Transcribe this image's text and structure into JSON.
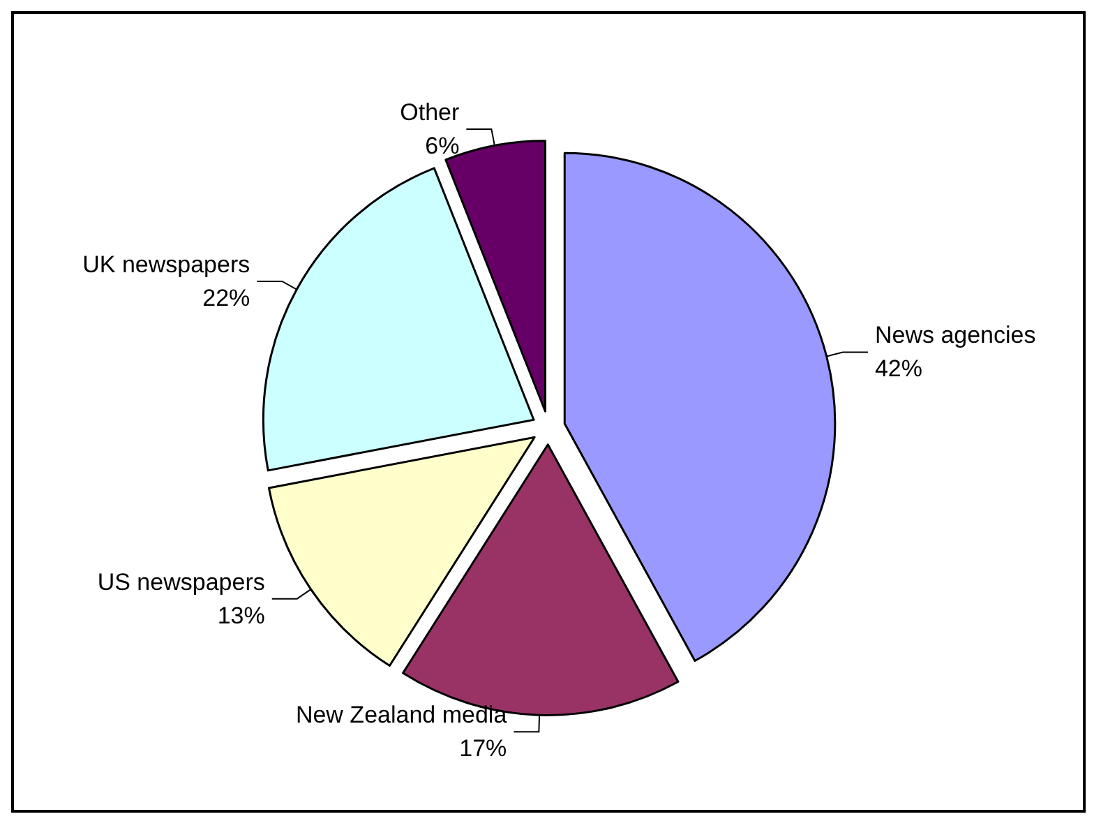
{
  "chart_data": {
    "type": "pie",
    "categories": [
      "News agencies",
      "New Zealand media",
      "US newspapers",
      "UK newspapers",
      "Other"
    ],
    "values": [
      42,
      17,
      13,
      22,
      6
    ],
    "value_labels": [
      "42%",
      "17%",
      "13%",
      "22%",
      "6%"
    ],
    "colors": [
      "#9999ff",
      "#993366",
      "#ffffcc",
      "#ccffff",
      "#660066"
    ]
  }
}
